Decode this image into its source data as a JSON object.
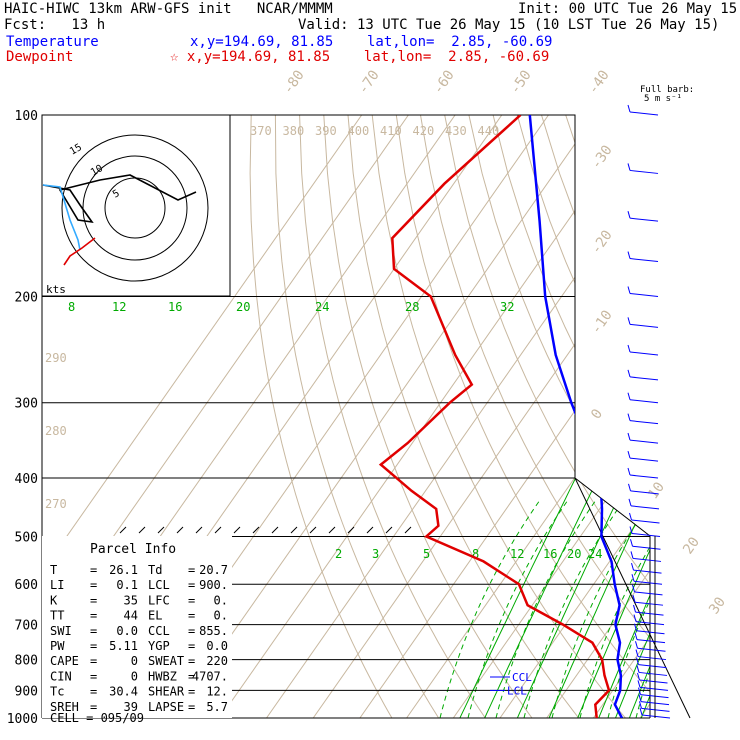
{
  "header": {
    "title": "HAIC-HIWC 13km ARW-GFS init   NCAR/MMMM",
    "init": "Init: 00 UTC Tue 26 May 15",
    "fcst": "Fcst:   13 h",
    "valid": "Valid: 13 UTC Tue 26 May 15 (10 LST Tue 26 May 15)",
    "temp_label": "Temperature",
    "temp_pos": "x,y=194.69, 81.85    lat,lon=  2.85, -60.69",
    "dew_label": "Dewpoint",
    "dew_pos": "☆ x,y=194.69, 81.85    lat,lon=  2.85, -60.69",
    "barb_label": "Full barb:",
    "barb_unit": "5 m s⁻¹"
  },
  "colors": {
    "temperature": "#0000ff",
    "dewpoint": "#e00000",
    "isotherm": "#c8b8a0",
    "mixing_ratio": "#00aa00",
    "hodo_sfc": "#33aaff"
  },
  "chart_data": {
    "type": "line",
    "skew_t": true,
    "pressure_levels": [
      100,
      200,
      300,
      400,
      500,
      600,
      700,
      800,
      900,
      1000
    ],
    "yscale": "log-pressure",
    "isotherm_labels": [
      "-80",
      "-70",
      "-60",
      "-50",
      "-40",
      "-30",
      "-20",
      "-10",
      "0",
      "10",
      "20",
      "30",
      "40"
    ],
    "theta_labels": [
      "370",
      "380",
      "390",
      "400",
      "410",
      "420",
      "430",
      "440"
    ],
    "theta_labels_left": [
      "290",
      "280",
      "270"
    ],
    "mixing_ratio_labels_upper": [
      "8",
      "12",
      "16",
      "20",
      "24",
      "28",
      "32"
    ],
    "mixing_ratio_labels_lower": [
      "2",
      "3",
      "5",
      "8",
      "12",
      "16",
      "20",
      "24"
    ],
    "series": [
      {
        "name": "Temperature",
        "p": [
          100,
          150,
          200,
          250,
          300,
          350,
          400,
          450,
          500,
          550,
          600,
          650,
          700,
          750,
          800,
          850,
          900,
          950,
          1000
        ],
        "t": [
          -84,
          -66,
          -53.5,
          -42.5,
          -32,
          -22.5,
          -14.5,
          -9.5,
          -5.5,
          0.4,
          4.5,
          8.7,
          10.7,
          14.4,
          16.4,
          19.5,
          21.6,
          22.6,
          26.1
        ]
      },
      {
        "name": "Dewpoint",
        "p": [
          100,
          130,
          160,
          180,
          200,
          250,
          280,
          300,
          350,
          380,
          420,
          450,
          480,
          500,
          550,
          600,
          650,
          700,
          750,
          800,
          850,
          900,
          950,
          1000
        ],
        "td": [
          -86,
          -92,
          -95,
          -90,
          -78,
          -64,
          -56,
          -58,
          -61,
          -63.5,
          -53,
          -45,
          -42,
          -43,
          -27,
          -16,
          -11,
          -0.5,
          8.5,
          13.1,
          16,
          19.2,
          18.4,
          20.7
        ]
      }
    ],
    "parcel_trace": "dashed line from 500 to 1000 hPa",
    "ccl_label": "CCL",
    "lcl_label": "LCL",
    "ccl_p": 855,
    "lcl_p": 900,
    "wind_barb_axis": "right",
    "hodograph": {
      "rings": [
        "5",
        "10",
        "15"
      ],
      "units": "kts"
    }
  },
  "parcel_info": {
    "title": "Parcel Info",
    "rows": [
      {
        "l": "T",
        "lv": "26.1",
        "r": "Td",
        "rv": "20.7"
      },
      {
        "l": "LI",
        "lv": "0.1",
        "r": "LCL",
        "rv": "900."
      },
      {
        "l": "K",
        "lv": "35",
        "r": "LFC",
        "rv": "0."
      },
      {
        "l": "TT",
        "lv": "44",
        "r": "EL",
        "rv": "0."
      },
      {
        "l": "SWI",
        "lv": "0.0",
        "r": "CCL",
        "rv": "855."
      },
      {
        "l": "PW",
        "lv": "5.11",
        "r": "YGP",
        "rv": "0.0"
      },
      {
        "l": "CAPE",
        "lv": "0",
        "r": "SWEAT",
        "rv": "220"
      },
      {
        "l": "CIN",
        "lv": "0",
        "r": "HWBZ",
        "rv": "4707."
      },
      {
        "l": "Tc",
        "lv": "30.4",
        "r": "SHEAR",
        "rv": "12."
      },
      {
        "l": "SREH",
        "lv": "39",
        "r": "LAPSE",
        "rv": "5.7"
      }
    ],
    "cell_label": "CELL",
    "cell_value": "095/09"
  }
}
